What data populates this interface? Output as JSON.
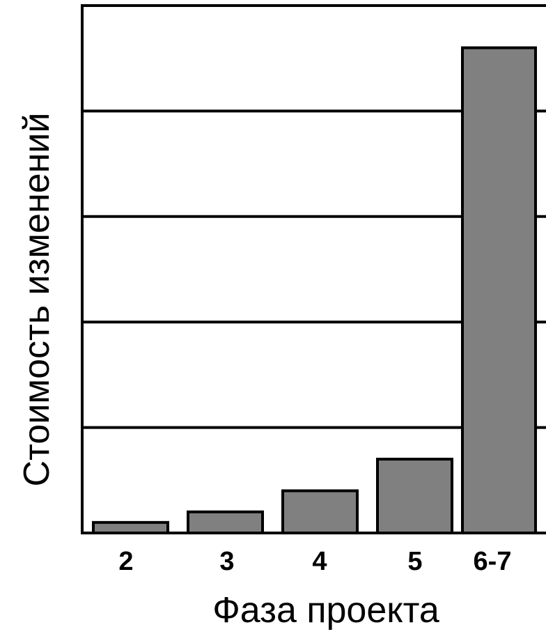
{
  "chart_data": {
    "type": "bar",
    "categories": [
      "2",
      "3",
      "4",
      "5",
      "6-7"
    ],
    "values": [
      1.0,
      2.0,
      4.0,
      7.0,
      46.0
    ],
    "xlabel": "Фаза проекта",
    "ylabel": "Стоимость изменений",
    "ylim": [
      0,
      50
    ],
    "grid": true,
    "colors": {
      "bar_fill": "#808080",
      "bar_stroke": "#000000",
      "grid": "#000000",
      "frame": "#000000",
      "background": "#ffffff"
    }
  }
}
